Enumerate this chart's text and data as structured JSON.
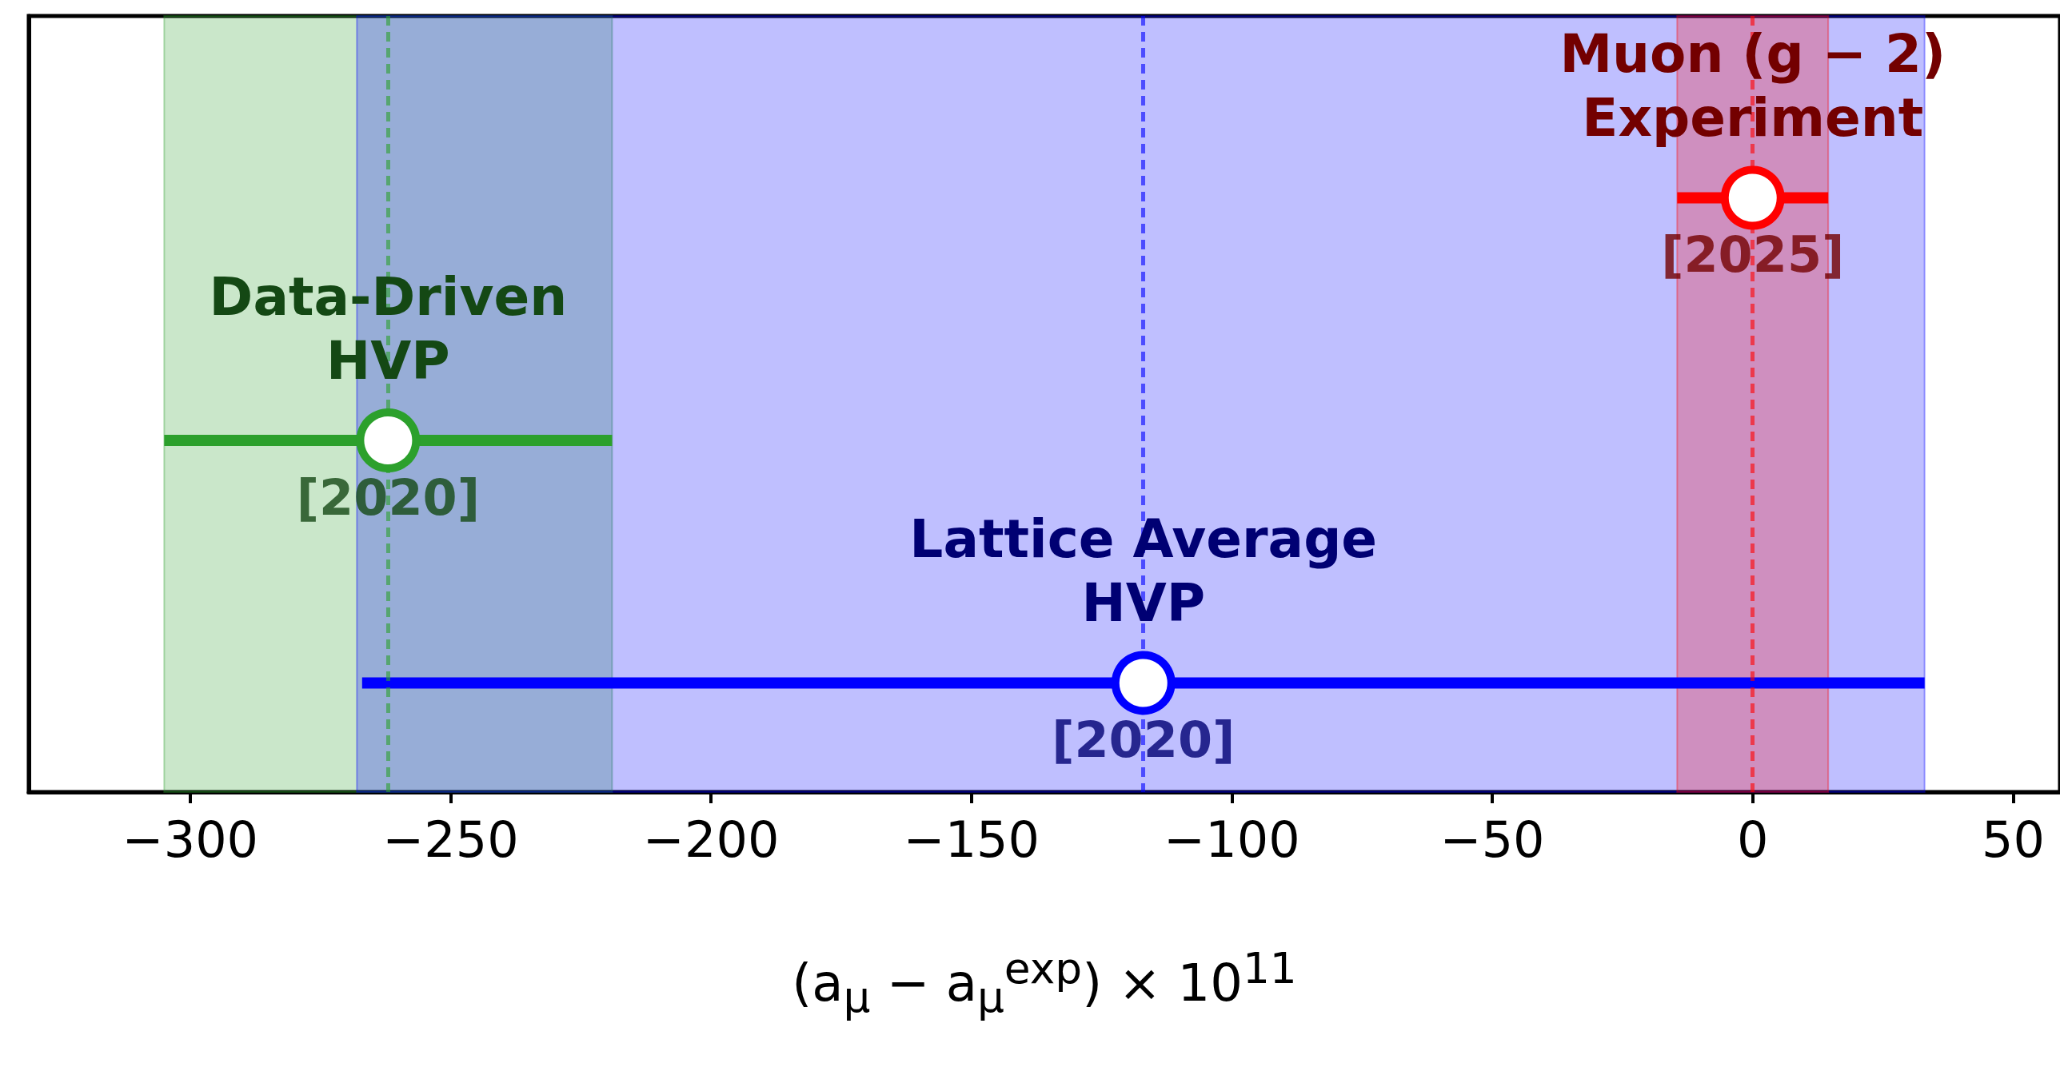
{
  "chart_data": {
    "type": "scatter",
    "orientation": "horizontal",
    "xlabel": "(a$_{μ}$ − a$_{μ}$$^{exp}$) × 10$^{11}$",
    "categories": [
      null,
      null,
      null
    ],
    "series": [
      {
        "name": "Muon (g − 2) Experiment",
        "color": "#ff0000",
        "values": [
          0,
          null,
          null
        ],
        "errors": [
          14.5,
          null,
          null
        ]
      },
      {
        "name": "Data-Driven HVP",
        "color": "#2ca02c",
        "values": [
          null,
          -262,
          null
        ],
        "errors": [
          null,
          43,
          null
        ]
      },
      {
        "name": "Lattice Average HVP",
        "color": "#0000ff",
        "values": [
          null,
          null,
          -117
        ],
        "errors": [
          null,
          null,
          150
        ]
      }
    ],
    "annotations": [
      "[2025]",
      "[2020]",
      "[2020]"
    ],
    "bands": [
      {
        "axis": "x",
        "from": -305,
        "to": -219,
        "color": "#2ca02c"
      },
      {
        "axis": "x",
        "from": -268,
        "to": 33,
        "color": "#0000ff"
      },
      {
        "axis": "x",
        "from": -14.5,
        "to": 14.5,
        "color": "#ff0000"
      }
    ],
    "ref_lines": [
      {
        "axis": "x",
        "value": -262,
        "color": "#2ca02c",
        "line_style": "dashed"
      },
      {
        "axis": "x",
        "value": -117,
        "color": "#0000ff",
        "line_style": "dashed"
      },
      {
        "axis": "x",
        "value": 0,
        "color": "#ff0000",
        "line_style": "dashed"
      }
    ],
    "xlim": [
      -331,
      59
    ],
    "xticks": [
      -300,
      -250,
      -200,
      -150,
      -100,
      -50,
      0,
      50
    ],
    "marker": "circle",
    "grid": false
  }
}
